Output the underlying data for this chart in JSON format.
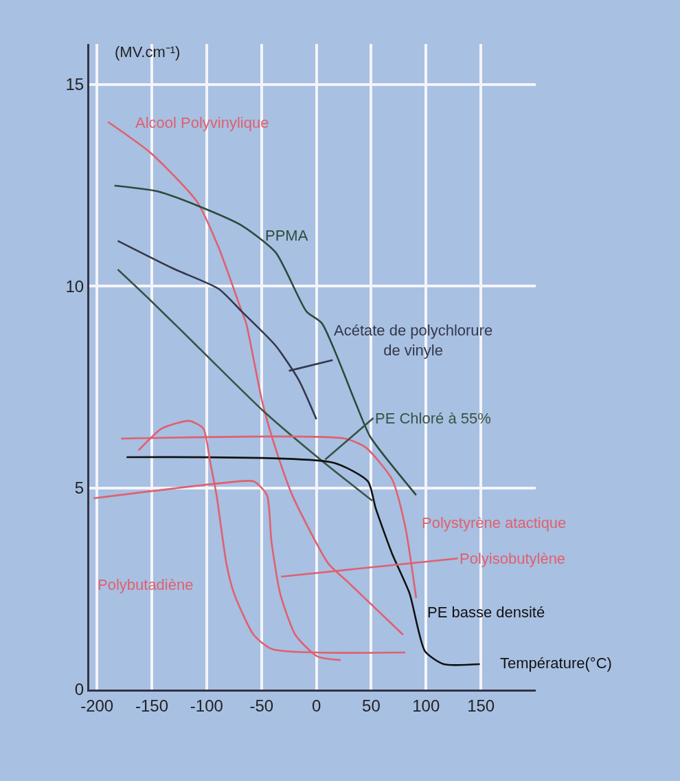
{
  "chart_data": {
    "type": "line",
    "xlabel": "Température(°C)",
    "ylabel": "(MV.cm⁻¹)",
    "xlim": [
      -207,
      200
    ],
    "ylim": [
      0,
      16
    ],
    "xticks": [
      -200,
      -150,
      -100,
      -50,
      0,
      50,
      100,
      150
    ],
    "yticks": [
      0,
      5,
      10,
      15
    ],
    "grid": true,
    "legend": false,
    "marker": "none",
    "line_style": "solid",
    "series": [
      {
        "name": "Alcool Polyvinylique",
        "color": "#e0606e",
        "x": [
          -190,
          -151,
          -109,
          -89,
          -68,
          -64,
          -49,
          -37,
          -22,
          11,
          29,
          79
        ],
        "values": [
          14.07,
          13.3,
          12.1,
          10.95,
          9.37,
          9.08,
          7.09,
          5.96,
          4.82,
          3.12,
          2.66,
          1.36
        ]
      },
      {
        "name": "PPMA",
        "color": "#2e4a3c",
        "x": [
          -184,
          -145,
          -109,
          -68,
          -37,
          -9,
          5,
          36,
          49,
          91
        ],
        "values": [
          12.49,
          12.35,
          12.0,
          11.5,
          10.83,
          9.37,
          9.08,
          7.09,
          6.27,
          4.82
        ]
      },
      {
        "name": "Acétate de polychlorure\nde vinyle",
        "color": "#33384a",
        "x": [
          -181,
          -131,
          -89,
          -68,
          -37,
          -16,
          0
        ],
        "values": [
          11.12,
          10.44,
          9.93,
          9.37,
          8.52,
          7.67,
          6.7
        ]
      },
      {
        "name": "PE Chloré à 55%",
        "color": "#3a5244",
        "x": [
          -181,
          -151,
          -109,
          -47,
          5,
          51
        ],
        "values": [
          10.41,
          9.64,
          8.52,
          6.87,
          5.67,
          4.68
        ]
      },
      {
        "name": "Polystyrène atactique",
        "color": "#e0606e",
        "x": [
          -178,
          26,
          45,
          69,
          81,
          91
        ],
        "values": [
          6.22,
          6.22,
          6.0,
          5.21,
          4.04,
          2.27
        ]
      },
      {
        "name": "Polyisobutylène",
        "color": "#e0606e",
        "x": [
          -203,
          -89,
          -57,
          -45,
          -41,
          -33,
          -19,
          1,
          22
        ],
        "values": [
          4.74,
          5.11,
          5.16,
          4.82,
          3.68,
          2.38,
          1.35,
          0.82,
          0.73
        ]
      },
      {
        "name": "PE basse densité",
        "color": "#111111",
        "x": [
          -173,
          16,
          47,
          54,
          69,
          85,
          99,
          116,
          149
        ],
        "values": [
          5.76,
          5.62,
          5.16,
          4.5,
          3.37,
          2.38,
          0.95,
          0.63,
          0.63
        ]
      },
      {
        "name": "Polybutadiène",
        "color": "#e0606e",
        "x": [
          -162,
          -141,
          -116,
          -103,
          -97,
          -91,
          -82,
          -75,
          -57,
          -40,
          81
        ],
        "values": [
          5.93,
          6.47,
          6.66,
          6.47,
          5.67,
          4.82,
          3.12,
          2.38,
          1.35,
          1.0,
          0.92
        ]
      }
    ]
  }
}
